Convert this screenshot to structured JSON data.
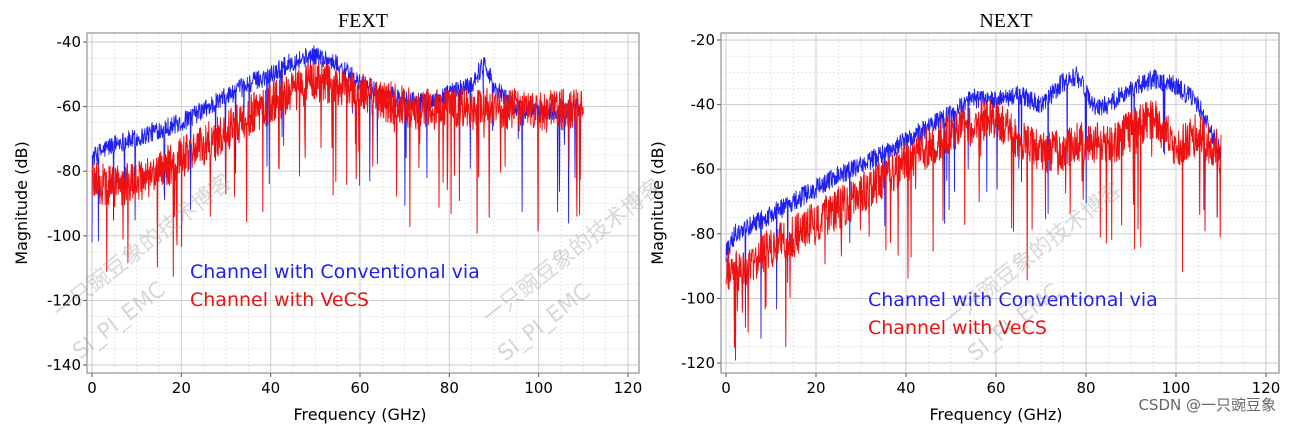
{
  "credit": "CSDN @一只豌豆象",
  "watermark": {
    "lines": [
      "一只豌豆象的技术博客",
      "SI_PI_EMC"
    ]
  },
  "colors": {
    "conventional": "#1f1ff0",
    "vecs": "#ee1111",
    "grid": "#c8c8c8"
  },
  "chart_data": [
    {
      "type": "line",
      "title": "FEXT",
      "xlabel": "Frequency (GHz)",
      "ylabel": "Magnitude (dB)",
      "xlim": [
        0,
        120
      ],
      "ylim": [
        -140,
        -40
      ],
      "xticks": [
        0,
        20,
        40,
        60,
        80,
        100,
        120
      ],
      "yticks": [
        -40,
        -60,
        -80,
        -100,
        -120,
        -140
      ],
      "legend": [
        "Channel with Conventional via",
        "Channel with VeCS"
      ],
      "series": [
        {
          "name": "Channel with Conventional via",
          "color": "#1f1ff0",
          "x": [
            0,
            1,
            3,
            6,
            10,
            15,
            20,
            25,
            30,
            35,
            40,
            45,
            50,
            55,
            60,
            65,
            70,
            75,
            80,
            85,
            88,
            90,
            95,
            100,
            105,
            110
          ],
          "y": [
            -76,
            -75,
            -73,
            -71,
            -70,
            -67,
            -65,
            -61,
            -57,
            -53,
            -50,
            -46,
            -44,
            -47,
            -53,
            -56,
            -58,
            -59,
            -56,
            -53,
            -46,
            -54,
            -60,
            -62,
            -61,
            -60
          ]
        },
        {
          "name": "Channel with VeCS",
          "color": "#ee1111",
          "x": [
            0,
            2,
            5,
            8,
            12,
            16,
            20,
            25,
            30,
            35,
            40,
            45,
            50,
            55,
            60,
            65,
            70,
            75,
            80,
            85,
            90,
            95,
            100,
            105,
            110
          ],
          "y": [
            -82,
            -84,
            -85,
            -84,
            -82,
            -79,
            -76,
            -72,
            -68,
            -63,
            -59,
            -55,
            -52,
            -53,
            -56,
            -58,
            -60,
            -61,
            -60,
            -61,
            -60,
            -61,
            -62,
            -61,
            -61
          ]
        }
      ]
    },
    {
      "type": "line",
      "title": "NEXT",
      "xlabel": "Frequency (GHz)",
      "ylabel": "Magnitude (dB)",
      "xlim": [
        0,
        120
      ],
      "ylim": [
        -120,
        -20
      ],
      "xticks": [
        0,
        20,
        40,
        60,
        80,
        100,
        120
      ],
      "yticks": [
        -20,
        -40,
        -60,
        -80,
        -100,
        -120
      ],
      "legend": [
        "Channel with Conventional via",
        "Channel with VeCS"
      ],
      "series": [
        {
          "name": "Channel with Conventional via",
          "color": "#1f1ff0",
          "x": [
            0,
            2,
            5,
            10,
            15,
            20,
            25,
            30,
            35,
            40,
            45,
            50,
            55,
            60,
            65,
            70,
            75,
            78,
            82,
            85,
            90,
            95,
            100,
            105,
            110
          ],
          "y": [
            -86,
            -80,
            -78,
            -74,
            -70,
            -66,
            -62,
            -59,
            -55,
            -51,
            -47,
            -43,
            -38,
            -39,
            -37,
            -40,
            -33,
            -31,
            -41,
            -40,
            -35,
            -32,
            -34,
            -40,
            -55
          ]
        },
        {
          "name": "Channel with VeCS",
          "color": "#ee1111",
          "x": [
            0,
            2,
            5,
            8,
            12,
            16,
            20,
            25,
            30,
            35,
            40,
            45,
            50,
            55,
            60,
            65,
            70,
            75,
            80,
            85,
            90,
            95,
            100,
            105,
            110
          ],
          "y": [
            -90,
            -92,
            -90,
            -86,
            -83,
            -80,
            -76,
            -72,
            -68,
            -63,
            -58,
            -53,
            -49,
            -46,
            -44,
            -51,
            -55,
            -54,
            -51,
            -53,
            -48,
            -44,
            -53,
            -49,
            -55
          ]
        }
      ]
    }
  ]
}
